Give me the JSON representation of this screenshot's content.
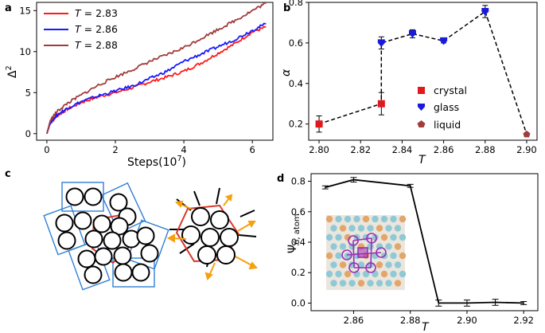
{
  "panel_labels": [
    "a",
    "b",
    "c",
    "d"
  ],
  "chart_data": [
    {
      "panel": "a",
      "type": "line",
      "xlabel": "Steps(10",
      "xlabel_exp": "7",
      "xlabel_close": ")",
      "ylabel": "Δ",
      "ylabel_exp": "2",
      "xlim": [
        -0.3,
        6.6
      ],
      "ylim": [
        -0.8,
        16
      ],
      "xticks": [
        0,
        2,
        4,
        6
      ],
      "yticks": [
        0,
        5,
        10,
        15
      ],
      "legend_position": "top-left",
      "series": [
        {
          "name": "T = 2.83",
          "legend_var": "T",
          "legend_value": "= 2.83",
          "color": "#ff1a1a",
          "x": [
            0,
            0.1,
            0.3,
            0.6,
            1.0,
            1.5,
            2.0,
            2.5,
            3.0,
            3.5,
            4.0,
            4.5,
            5.0,
            5.5,
            6.0,
            6.4
          ],
          "y": [
            0,
            1.3,
            2.2,
            3.0,
            3.8,
            4.5,
            5.0,
            5.6,
            6.3,
            6.9,
            7.6,
            8.6,
            9.8,
            11.0,
            12.4,
            13.0
          ]
        },
        {
          "name": "T = 2.86",
          "legend_var": "T",
          "legend_value": "= 2.86",
          "color": "#1a1aff",
          "x": [
            0,
            0.1,
            0.3,
            0.6,
            1.0,
            1.5,
            2.0,
            2.5,
            3.0,
            3.5,
            4.0,
            4.5,
            5.0,
            5.5,
            6.0,
            6.4
          ],
          "y": [
            0,
            1.4,
            2.3,
            3.1,
            3.9,
            4.6,
            5.2,
            5.8,
            6.7,
            7.6,
            8.8,
            9.7,
            10.6,
            11.5,
            12.6,
            13.4
          ]
        },
        {
          "name": "T = 2.88",
          "legend_var": "T",
          "legend_value": "= 2.88",
          "color": "#a03c3c",
          "x": [
            0,
            0.1,
            0.3,
            0.6,
            1.0,
            1.5,
            2.0,
            2.5,
            3.0,
            3.5,
            4.0,
            4.5,
            5.0,
            5.5,
            6.0,
            6.4
          ],
          "y": [
            0,
            1.6,
            2.7,
            3.7,
            4.7,
            5.9,
            6.9,
            7.8,
            8.8,
            9.6,
            10.5,
            11.6,
            12.7,
            13.8,
            15.0,
            15.9
          ]
        }
      ]
    },
    {
      "panel": "b",
      "type": "scatter",
      "xlabel": "T",
      "ylabel": "α",
      "xlim": [
        2.795,
        2.905
      ],
      "ylim": [
        0.12,
        0.8
      ],
      "xticks": [
        2.8,
        2.82,
        2.84,
        2.86,
        2.88,
        2.9
      ],
      "xtick_labels": [
        "2.80",
        "2.82",
        "2.84",
        "2.86",
        "2.88",
        "2.90"
      ],
      "yticks": [
        0.2,
        0.4,
        0.6,
        0.8
      ],
      "ytick_labels": [
        "0.2",
        "0.4",
        "0.6",
        "0.8"
      ],
      "legend_position": "lower-right",
      "connector": "dashed",
      "points": [
        {
          "x": 2.8,
          "y": 0.2,
          "err": 0.04,
          "phase": "crystal"
        },
        {
          "x": 2.83,
          "y": 0.3,
          "err": 0.055,
          "phase": "crystal"
        },
        {
          "x": 2.83,
          "y": 0.6,
          "err": 0.03,
          "phase": "glass"
        },
        {
          "x": 2.845,
          "y": 0.645,
          "err": 0.02,
          "phase": "glass"
        },
        {
          "x": 2.86,
          "y": 0.61,
          "err": 0.01,
          "phase": "glass"
        },
        {
          "x": 2.88,
          "y": 0.755,
          "err": 0.03,
          "phase": "glass"
        },
        {
          "x": 2.9,
          "y": 0.15,
          "err": 0.0,
          "phase": "liquid"
        }
      ],
      "legend": [
        {
          "label": "crystal",
          "color": "#e0191f",
          "marker": "square"
        },
        {
          "label": "glass",
          "color": "#1a1adb",
          "marker": "shield"
        },
        {
          "label": "liquid",
          "color": "#a03c3c",
          "marker": "pentagon"
        }
      ]
    },
    {
      "panel": "d",
      "type": "line",
      "xlabel": "T",
      "ylabel": "Ψ",
      "ylabel_sub": "6, atom",
      "xlim": [
        2.845,
        2.925
      ],
      "ylim": [
        -0.05,
        0.85
      ],
      "xticks": [
        2.86,
        2.88,
        2.9,
        2.92
      ],
      "xtick_labels": [
        "2.86",
        "2.88",
        "2.90",
        "2.92"
      ],
      "yticks": [
        0.0,
        0.2,
        0.4,
        0.6,
        0.8
      ],
      "ytick_labels": [
        "0.0",
        "0.2",
        "0.4",
        "0.6",
        "0.8"
      ],
      "series": [
        {
          "name": "Psi6",
          "color": "#000000",
          "x": [
            2.85,
            2.86,
            2.88,
            2.89,
            2.9,
            2.91,
            2.92
          ],
          "y": [
            0.76,
            0.81,
            0.77,
            0.0,
            0.0,
            0.005,
            0.0
          ],
          "err": [
            0.01,
            0.015,
            0.01,
            0.02,
            0.02,
            0.02,
            0.01
          ]
        }
      ]
    }
  ],
  "colors": {
    "box_blue": "#2f7fd6",
    "cell_red": "#d8382a",
    "arrow_orange": "#f5a00f",
    "atom_cyan": "#8fc9d6",
    "atom_tan": "#e2a66a",
    "overlay_purple": "#9b2fb5"
  }
}
